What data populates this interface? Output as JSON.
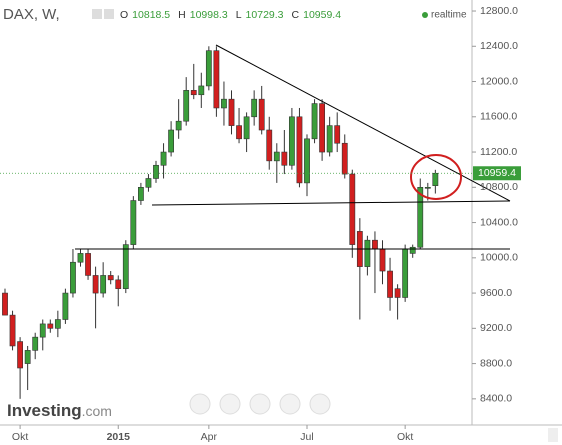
{
  "header": {
    "symbol": "DAX, W,",
    "ohlc_labels": [
      "O",
      "H",
      "L",
      "C"
    ],
    "status": "realtime"
  },
  "logo": {
    "brand": "Investing",
    "suffix": ".com"
  },
  "chart_data": {
    "type": "candlestick",
    "categories": [
      null,
      null,
      "Okt",
      null,
      null,
      null,
      null,
      null,
      null,
      null,
      null,
      null,
      null,
      null,
      null,
      "2015",
      null,
      null,
      null,
      null,
      null,
      null,
      null,
      null,
      null,
      null,
      null,
      "Apr",
      null,
      null,
      null,
      null,
      null,
      null,
      null,
      null,
      null,
      null,
      null,
      null,
      "Jul",
      null,
      null,
      null,
      null,
      null,
      null,
      null,
      null,
      null,
      null,
      null,
      null,
      "Okt",
      null,
      null,
      null,
      null
    ],
    "open": [
      9600,
      9350,
      9050,
      8800,
      8950,
      9100,
      9250,
      9200,
      9300,
      9600,
      9950,
      10050,
      9800,
      9600,
      9800,
      9750,
      9650,
      10150,
      10650,
      10800,
      10900,
      11050,
      11200,
      11450,
      11550,
      11900,
      11850,
      11950,
      12350,
      11700,
      11800,
      11500,
      11350,
      11600,
      11800,
      11450,
      11100,
      11200,
      11050,
      11600,
      10850,
      11350,
      11750,
      11200,
      11500,
      11300,
      10950,
      10300,
      9900,
      10200,
      10100,
      9850,
      9650,
      9550,
      10050,
      10120,
      10800,
      10818.5
    ],
    "high": [
      9650,
      9400,
      9100,
      9000,
      9150,
      9300,
      9300,
      9400,
      9650,
      10100,
      10100,
      10100,
      9900,
      9950,
      9850,
      9800,
      10200,
      10700,
      10850,
      10950,
      11100,
      11300,
      11550,
      11800,
      12050,
      12200,
      12100,
      12400,
      12400,
      12000,
      11900,
      11700,
      11650,
      11900,
      11950,
      11600,
      11300,
      11450,
      11700,
      11700,
      11400,
      11800,
      11800,
      11600,
      11650,
      11400,
      11000,
      10450,
      10250,
      10300,
      10200,
      10000,
      9700,
      10150,
      10150,
      10900,
      10850,
      10998.3
    ],
    "low": [
      9350,
      8950,
      8400,
      8500,
      8850,
      8950,
      9150,
      9100,
      9250,
      9550,
      9900,
      9750,
      9200,
      9550,
      9700,
      9450,
      9600,
      10100,
      10600,
      10750,
      10850,
      10900,
      11150,
      11350,
      11500,
      11800,
      11700,
      11900,
      11600,
      11500,
      11400,
      11300,
      11200,
      11500,
      11400,
      11000,
      10850,
      10950,
      11000,
      10800,
      10700,
      11300,
      11100,
      11150,
      11200,
      10900,
      10000,
      9300,
      9800,
      9600,
      9700,
      9400,
      9300,
      9500,
      10000,
      10100,
      10650,
      10729.3
    ],
    "close": [
      9350,
      9000,
      8750,
      8950,
      9100,
      9250,
      9200,
      9300,
      9600,
      9950,
      10050,
      9800,
      9600,
      9800,
      9750,
      9650,
      10150,
      10650,
      10800,
      10900,
      11050,
      11200,
      11450,
      11550,
      11900,
      11850,
      11950,
      12350,
      11700,
      11800,
      11500,
      11350,
      11600,
      11800,
      11450,
      11100,
      11200,
      11050,
      11600,
      10850,
      11350,
      11750,
      11200,
      11500,
      11300,
      10950,
      10150,
      9900,
      10200,
      10100,
      9850,
      9550,
      9550,
      10100,
      10120,
      10800,
      10800,
      10959.4
    ],
    "up_color": "#3a9d3a",
    "down_color": "#d11f1f",
    "ylim": [
      8160,
      12925
    ],
    "yticks": [
      {
        "value": 8400,
        "label": "8400.0"
      },
      {
        "value": 8800,
        "label": "8800.0"
      },
      {
        "value": 9200,
        "label": "9200.0"
      },
      {
        "value": 9600,
        "label": "9600.0"
      },
      {
        "value": 10000,
        "label": "10000.0"
      },
      {
        "value": 10400,
        "label": "10400.0"
      },
      {
        "value": 10800,
        "label": "10800.0"
      },
      {
        "value": 11200,
        "label": "11200.0"
      },
      {
        "value": 11600,
        "label": "11600.0"
      },
      {
        "value": 12000,
        "label": "12000.0"
      },
      {
        "value": 12400,
        "label": "12400.0"
      },
      {
        "value": 12800,
        "label": "12800.0"
      }
    ],
    "grid": false
  }
}
